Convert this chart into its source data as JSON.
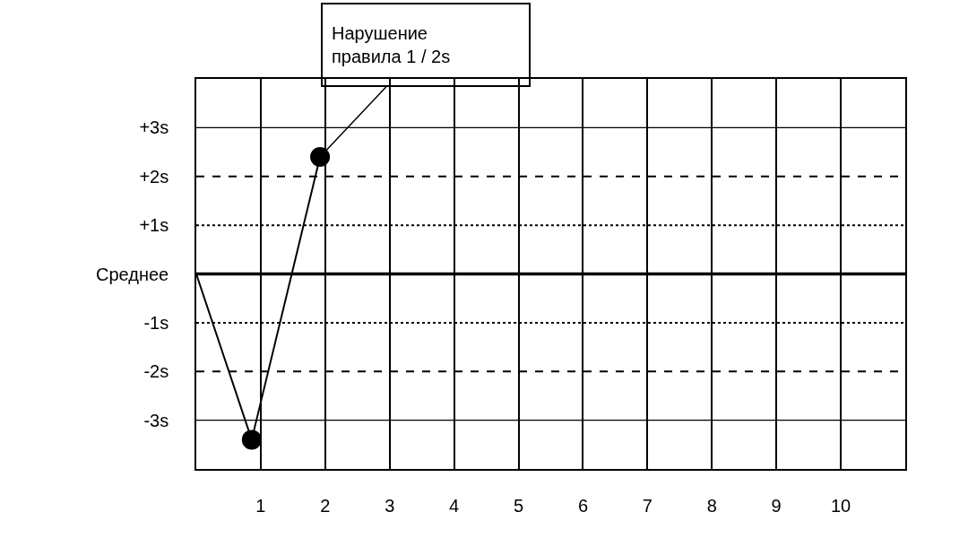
{
  "chart_data": {
    "type": "line",
    "series": [
      {
        "x": [
          0,
          0.86,
          1.92
        ],
        "values": [
          0,
          -3.4,
          2.4
        ],
        "color": "#000000",
        "marker": "none",
        "line_style": "solid"
      },
      {
        "type": "scatter",
        "x": [
          0.86,
          1.92
        ],
        "values": [
          -3.4,
          2.4
        ],
        "color": "#000000",
        "marker": "circle"
      }
    ],
    "xlim": [
      0,
      11
    ],
    "xticks": [
      1,
      2,
      3,
      4,
      5,
      6,
      7,
      8,
      9,
      10
    ],
    "ylim": [
      -4,
      4
    ],
    "yticks": [
      {
        "value": -3,
        "label": "-3s"
      },
      {
        "value": -2,
        "label": "-2s"
      },
      {
        "value": -1,
        "label": "-1s"
      },
      {
        "value": 0,
        "label": "Среднее"
      },
      {
        "value": 1,
        "label": "+1s"
      },
      {
        "value": 2,
        "label": "+2s"
      },
      {
        "value": 3,
        "label": "+3s"
      }
    ],
    "ref_lines": [
      {
        "axis": "y",
        "value": 3,
        "color": "#000000",
        "line_style": "solid"
      },
      {
        "axis": "y",
        "value": -3,
        "color": "#000000",
        "line_style": "solid"
      },
      {
        "axis": "y",
        "value": 0,
        "color": "#000000",
        "line_style": "solid"
      },
      {
        "axis": "y",
        "value": 1,
        "color": "#000000",
        "line_style": "dotted"
      },
      {
        "axis": "y",
        "value": -1,
        "color": "#000000",
        "line_style": "dotted"
      },
      {
        "axis": "y",
        "value": 2,
        "color": "#000000",
        "line_style": "dashed"
      },
      {
        "axis": "y",
        "value": -2,
        "color": "#000000",
        "line_style": "dashed"
      }
    ],
    "annotations": [
      {
        "text": "Нарушение\nправила 1 / 2s",
        "x": 1.92,
        "y": 2.4
      }
    ],
    "grid": "x"
  }
}
